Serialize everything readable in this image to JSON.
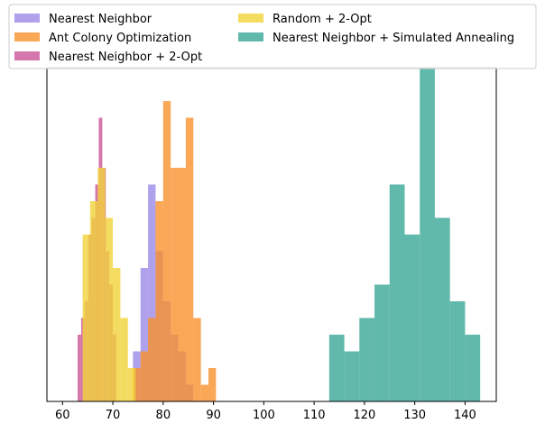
{
  "chart_data": {
    "type": "histogram",
    "title": "",
    "xlabel": "",
    "ylabel": "",
    "xlim": [
      56.9,
      146.2
    ],
    "ylim": [
      0,
      20
    ],
    "y_axis_visible": false,
    "xticks": [
      60,
      70,
      80,
      90,
      100,
      110,
      120,
      130,
      140
    ],
    "legend": {
      "placement": "upper-center, above axes",
      "columns": 2
    },
    "series": [
      {
        "name": "Nearest Neighbor",
        "color": "#9b8ae6",
        "opacity": 0.8,
        "bin_edges": [
          74.0,
          75.5,
          77.0,
          78.5,
          80.0,
          81.5,
          83.0,
          84.5,
          86.0
        ],
        "counts": [
          3,
          8,
          13,
          9,
          6,
          4,
          3,
          1
        ]
      },
      {
        "name": "Ant Colony Optimization",
        "color": "#f9912d",
        "opacity": 0.8,
        "bin_edges": [
          74.0,
          75.5,
          77.0,
          78.5,
          80.0,
          81.5,
          83.0,
          84.5,
          86.0,
          87.5,
          89.0,
          90.5
        ],
        "counts": [
          2,
          3,
          5,
          12,
          18,
          14,
          14,
          17,
          5,
          1,
          2
        ]
      },
      {
        "name": "Nearest Neighbor + 2-Opt",
        "color": "#cc5596",
        "opacity": 0.8,
        "bin_edges": [
          63.0,
          63.7,
          64.4,
          65.1,
          65.8,
          66.5,
          67.2,
          67.9,
          68.6,
          69.3,
          70.0,
          70.7
        ],
        "counts": [
          4,
          5,
          6,
          10,
          11,
          13,
          17,
          14,
          9,
          7,
          4
        ]
      },
      {
        "name": "Random + 2-Opt",
        "color": "#f1d33a",
        "opacity": 0.8,
        "bin_edges": [
          64.0,
          65.5,
          67.0,
          68.5,
          70.0,
          71.5,
          73.0,
          74.5
        ],
        "counts": [
          10,
          12,
          14,
          11,
          8,
          5,
          2
        ]
      },
      {
        "name": "Nearest Neighbor + Simulated Annealing",
        "color": "#3aa796",
        "opacity": 0.8,
        "bin_edges": [
          113.0,
          116.0,
          119.0,
          122.0,
          125.0,
          128.0,
          131.0,
          134.0,
          137.0,
          140.0,
          143.0
        ],
        "counts": [
          4,
          3,
          5,
          7,
          13,
          10,
          20,
          11,
          6,
          4
        ]
      }
    ]
  }
}
